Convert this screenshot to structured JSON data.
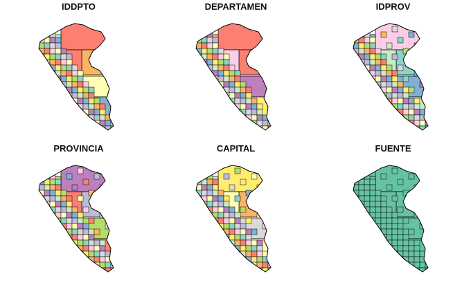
{
  "panels": [
    {
      "title": "IDDPTO",
      "scheme": "set3a"
    },
    {
      "title": "DEPARTAMEN",
      "scheme": "set3a"
    },
    {
      "title": "IDPROV",
      "scheme": "set3b"
    },
    {
      "title": "PROVINCIA",
      "scheme": "set3c"
    },
    {
      "title": "CAPITAL",
      "scheme": "set3d"
    },
    {
      "title": "FUENTE",
      "scheme": "single"
    }
  ],
  "colors": {
    "border": "#000000",
    "single_fill": "#66c2a5",
    "palette": [
      "#fb8072",
      "#8dd3c7",
      "#ffffb3",
      "#bebada",
      "#80b1d3",
      "#fdb462",
      "#b3de69",
      "#fccde5",
      "#d9d9d9",
      "#bc80bd",
      "#ccebc5",
      "#ffed6f"
    ]
  }
}
